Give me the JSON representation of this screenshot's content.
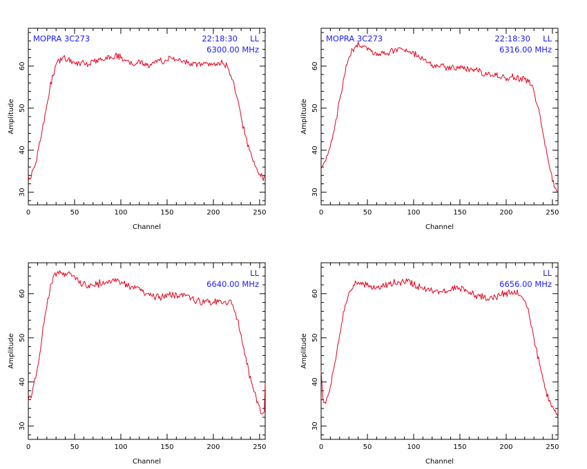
{
  "style": {
    "line_color": "#e0001b",
    "annotation_color": "#1a1aff",
    "frame_color": "#000000"
  },
  "chart_data": [
    {
      "type": "line",
      "xlabel": "Channel",
      "ylabel": "Amplitude",
      "xlim": [
        0,
        256
      ],
      "ylim": [
        27,
        69
      ],
      "xticks": [
        0,
        50,
        100,
        150,
        200,
        250
      ],
      "yticks": [
        30,
        40,
        50,
        60
      ],
      "annotations": {
        "top_left": "MOPRA 3C273",
        "time": "22:18:30",
        "pol": "LL",
        "freq": "6300.00 MHz"
      },
      "series": [
        {
          "x": [
            0,
            3,
            6,
            9,
            12,
            15,
            18,
            21,
            24,
            27,
            30,
            33,
            36,
            40,
            45,
            50,
            55,
            60,
            65,
            70,
            75,
            80,
            85,
            90,
            95,
            100,
            105,
            110,
            115,
            120,
            125,
            130,
            135,
            140,
            145,
            150,
            155,
            160,
            165,
            170,
            175,
            180,
            185,
            190,
            195,
            200,
            205,
            210,
            214,
            218,
            222,
            225,
            228,
            231,
            234,
            237,
            240,
            243,
            246,
            249,
            252,
            255
          ],
          "y": [
            33,
            34,
            35.5,
            38,
            41.5,
            45,
            48.5,
            52,
            55.5,
            58,
            60,
            61.3,
            61.8,
            62,
            61.5,
            60.5,
            60.2,
            60.8,
            60.5,
            61,
            61.3,
            61.8,
            62,
            62.3,
            62.5,
            62.2,
            61,
            60.8,
            60.6,
            61,
            60.5,
            60.3,
            60.8,
            61,
            61.2,
            61.5,
            61.6,
            61.4,
            61.2,
            61.0,
            60.8,
            60.6,
            60.3,
            60.2,
            60.2,
            60.3,
            60.6,
            60.5,
            60,
            58.5,
            56,
            53,
            50,
            47,
            44,
            41.5,
            39.5,
            37.5,
            35.8,
            34.5,
            33.8,
            33.5
          ]
        }
      ]
    },
    {
      "type": "line",
      "xlabel": "Channel",
      "ylabel": "Amplitude",
      "xlim": [
        0,
        256
      ],
      "ylim": [
        27,
        69
      ],
      "xticks": [
        0,
        50,
        100,
        150,
        200,
        250
      ],
      "yticks": [
        30,
        40,
        50,
        60
      ],
      "annotations": {
        "top_left": "MOPRA 3C273",
        "time": "22:18:30",
        "pol": "LL",
        "freq": "6316.00 MHz"
      },
      "series": [
        {
          "x": [
            0,
            3,
            6,
            9,
            12,
            15,
            18,
            21,
            24,
            27,
            30,
            33,
            36,
            40,
            45,
            50,
            55,
            60,
            65,
            70,
            75,
            80,
            85,
            90,
            95,
            100,
            105,
            110,
            115,
            120,
            125,
            130,
            135,
            140,
            145,
            150,
            155,
            160,
            165,
            170,
            175,
            180,
            185,
            190,
            195,
            200,
            205,
            210,
            215,
            220,
            225,
            228,
            231,
            234,
            237,
            240,
            243,
            246,
            249,
            252,
            255
          ],
          "y": [
            36,
            37,
            38.5,
            40.5,
            43,
            46,
            49.5,
            53,
            56.5,
            59.5,
            61.8,
            63.5,
            64.5,
            65,
            64.8,
            64.5,
            63.5,
            62.5,
            63,
            63.2,
            63.5,
            63.8,
            64,
            63.8,
            63.5,
            63,
            62.5,
            61.5,
            60.5,
            60.2,
            60,
            59.8,
            59.6,
            59.5,
            59.4,
            59.5,
            59.5,
            59.4,
            59.2,
            59,
            58.5,
            58.2,
            57.8,
            57.6,
            57.4,
            57.3,
            57.3,
            57.3,
            57.2,
            57,
            56.2,
            55,
            53,
            50.5,
            47.5,
            44,
            40.5,
            37,
            34,
            31.5,
            30
          ]
        }
      ]
    },
    {
      "type": "line",
      "xlabel": "Channel",
      "ylabel": "Amplitude",
      "xlim": [
        0,
        256
      ],
      "ylim": [
        27,
        67
      ],
      "xticks": [
        0,
        50,
        100,
        150,
        200,
        250
      ],
      "yticks": [
        30,
        40,
        50,
        60
      ],
      "annotations": {
        "pol": "LL",
        "freq": "6640.00 MHz"
      },
      "series": [
        {
          "x": [
            0,
            3,
            6,
            9,
            12,
            15,
            18,
            21,
            24,
            27,
            30,
            33,
            36,
            40,
            45,
            50,
            55,
            60,
            65,
            70,
            75,
            80,
            85,
            90,
            95,
            100,
            105,
            110,
            115,
            120,
            125,
            130,
            135,
            140,
            145,
            150,
            155,
            160,
            165,
            170,
            175,
            180,
            185,
            190,
            195,
            200,
            205,
            210,
            215,
            220,
            223,
            226,
            229,
            232,
            235,
            238,
            241,
            244,
            247,
            250,
            253,
            255,
            256
          ],
          "y": [
            36,
            37,
            39,
            42,
            46,
            50.5,
            55,
            58.5,
            61.5,
            63.5,
            64.5,
            64.8,
            64.6,
            64.5,
            64.5,
            63.8,
            62.5,
            62.2,
            62,
            62,
            62.2,
            62.5,
            62.8,
            63,
            63.2,
            62.5,
            62,
            61.8,
            61.5,
            61,
            60.5,
            59.8,
            59.5,
            59.4,
            59.3,
            59.5,
            59.8,
            59.7,
            59.5,
            59.2,
            58.8,
            58.5,
            58.3,
            58.2,
            58.1,
            58,
            58.1,
            58.2,
            58.3,
            58,
            56.5,
            54,
            51.5,
            48.5,
            45.5,
            42.5,
            40,
            37.8,
            35.8,
            34,
            32.5,
            33.5,
            40
          ]
        }
      ]
    },
    {
      "type": "line",
      "xlabel": "Channel",
      "ylabel": "Amplitude",
      "xlim": [
        0,
        256
      ],
      "ylim": [
        27,
        67
      ],
      "xticks": [
        0,
        50,
        100,
        150,
        200,
        250
      ],
      "yticks": [
        30,
        40,
        50,
        60
      ],
      "annotations": {
        "pol": "LL",
        "freq": "6656.00 MHz"
      },
      "series": [
        {
          "x": [
            0,
            2,
            4,
            7,
            10,
            13,
            16,
            19,
            22,
            25,
            28,
            31,
            34,
            37,
            40,
            45,
            50,
            55,
            60,
            65,
            70,
            75,
            80,
            85,
            90,
            95,
            100,
            105,
            110,
            115,
            120,
            125,
            130,
            135,
            140,
            145,
            150,
            155,
            160,
            165,
            170,
            175,
            180,
            185,
            190,
            195,
            200,
            205,
            210,
            215,
            220,
            223,
            226,
            229,
            232,
            235,
            238,
            241,
            244,
            247,
            250,
            253,
            256
          ],
          "y": [
            43,
            35.5,
            35.2,
            36.5,
            39,
            42.5,
            46,
            49.5,
            53,
            56,
            58.5,
            60.3,
            61.5,
            62.2,
            62.5,
            62.5,
            62,
            61.5,
            61.2,
            61.5,
            62,
            62.3,
            62.5,
            62.6,
            62.8,
            62.6,
            62.2,
            61.5,
            61,
            60.7,
            60.5,
            60.4,
            60.6,
            60.8,
            61,
            61.2,
            61.2,
            61,
            60.5,
            60,
            59.5,
            59.2,
            59.1,
            59.2,
            59.5,
            59.8,
            60,
            60.2,
            60.3,
            60,
            58.5,
            56.5,
            54,
            51,
            48,
            45,
            42,
            39.5,
            37.2,
            35.5,
            34.2,
            33.2,
            32.5
          ]
        }
      ]
    }
  ]
}
